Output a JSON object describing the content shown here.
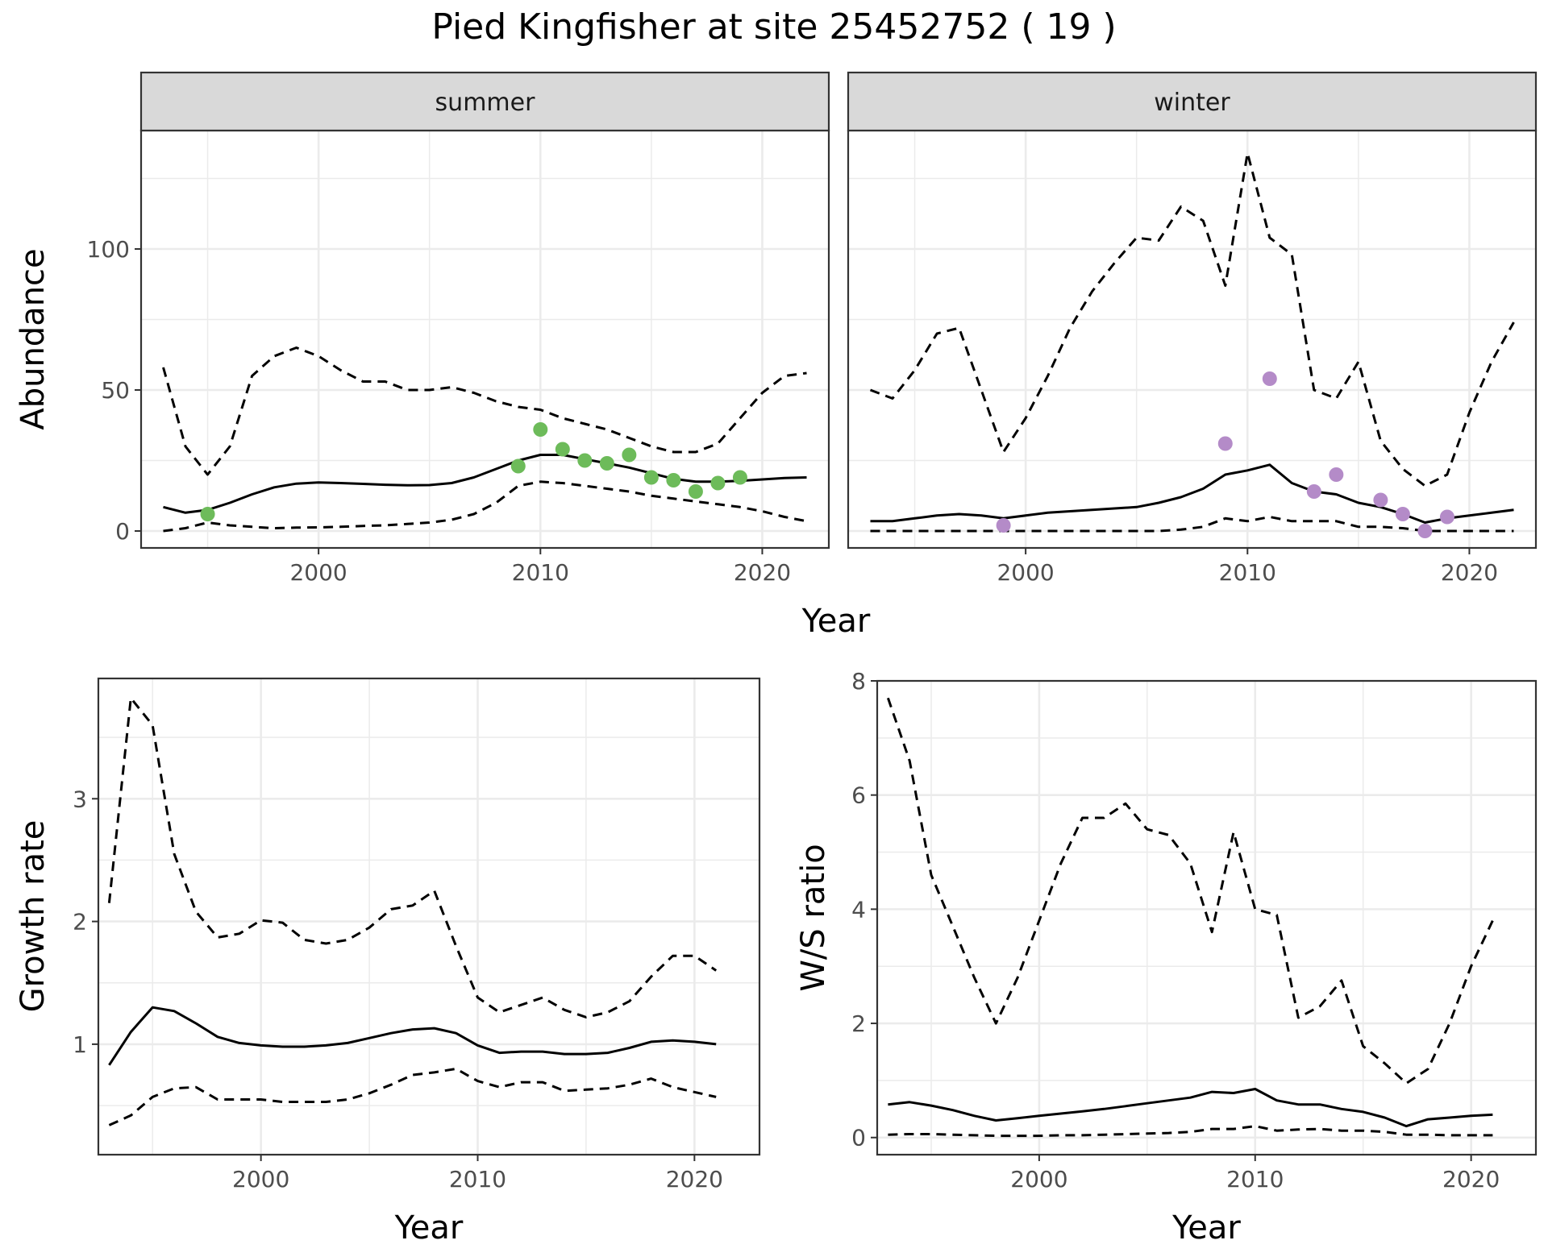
{
  "title": "Pied Kingfisher at site 25452752 ( 19 )",
  "colors": {
    "summer_points": "#6dbb5a",
    "winter_points": "#b48bc8",
    "line": "#000000",
    "strip_bg": "#d9d9d9",
    "grid": "#ebebeb"
  },
  "chart_data": [
    {
      "type": "line",
      "panel": "summer",
      "strip": "summer",
      "ylabel": "Abundance",
      "xlabel": "Year",
      "xlim": [
        1992,
        2023
      ],
      "ylim": [
        -6,
        142
      ],
      "xticks": [
        2000,
        2010,
        2020
      ],
      "yticks": [
        0,
        50,
        100
      ],
      "grid": true,
      "x": [
        1993,
        1994,
        1995,
        1996,
        1997,
        1998,
        1999,
        2000,
        2001,
        2002,
        2003,
        2004,
        2005,
        2006,
        2007,
        2008,
        2009,
        2010,
        2011,
        2012,
        2013,
        2014,
        2015,
        2016,
        2017,
        2018,
        2019,
        2020,
        2021,
        2022
      ],
      "series": [
        {
          "role": "estimate",
          "style": "solid",
          "values": [
            8.5,
            6.5,
            7.5,
            10,
            13,
            15.5,
            16.8,
            17.2,
            17,
            16.7,
            16.4,
            16.2,
            16.3,
            17,
            19,
            22,
            25,
            27,
            27,
            25.5,
            24,
            22.5,
            20.5,
            18.5,
            17.5,
            17.5,
            17.8,
            18.3,
            18.8,
            19
          ]
        },
        {
          "role": "upper",
          "style": "dashed",
          "values": [
            58,
            30,
            20,
            30,
            55,
            62,
            65,
            62,
            57,
            53,
            53,
            50,
            50,
            51,
            49,
            46,
            44,
            43,
            40,
            38,
            36,
            33,
            30,
            28,
            28,
            31,
            40,
            49,
            55,
            56
          ]
        },
        {
          "role": "lower",
          "style": "dashed",
          "values": [
            0,
            1,
            3,
            2,
            1.5,
            1,
            1.2,
            1.3,
            1.5,
            1.8,
            2,
            2.5,
            3,
            4,
            6,
            10,
            16,
            17.5,
            17,
            16,
            15,
            14,
            12.5,
            11.5,
            10.5,
            9.5,
            8.5,
            7,
            5,
            3.5
          ]
        }
      ],
      "points": {
        "x": [
          1995,
          2009,
          2010,
          2011,
          2012,
          2013,
          2014,
          2015,
          2016,
          2017,
          2018,
          2019
        ],
        "y": [
          6,
          23,
          36,
          29,
          25,
          24,
          27,
          19,
          18,
          14,
          17,
          19
        ]
      }
    },
    {
      "type": "line",
      "panel": "winter",
      "strip": "winter",
      "ylabel": "",
      "xlabel": "Year",
      "xlim": [
        1992,
        2023
      ],
      "ylim": [
        -6,
        142
      ],
      "xticks": [
        2000,
        2010,
        2020
      ],
      "yticks": [
        0,
        50,
        100
      ],
      "grid": true,
      "x": [
        1993,
        1994,
        1995,
        1996,
        1997,
        1998,
        1999,
        2000,
        2001,
        2002,
        2003,
        2004,
        2005,
        2006,
        2007,
        2008,
        2009,
        2010,
        2011,
        2012,
        2013,
        2014,
        2015,
        2016,
        2017,
        2018,
        2019,
        2020,
        2021,
        2022
      ],
      "series": [
        {
          "role": "estimate",
          "style": "solid",
          "values": [
            3.5,
            3.5,
            4.5,
            5.5,
            6,
            5.5,
            4.5,
            5.5,
            6.5,
            7,
            7.5,
            8,
            8.5,
            10,
            12,
            15,
            20,
            21.5,
            23.5,
            17,
            14,
            13,
            10,
            8.5,
            6,
            3,
            4.5,
            5.5,
            6.5,
            7.5
          ]
        },
        {
          "role": "upper",
          "style": "dashed",
          "values": [
            50,
            47,
            57,
            70,
            72,
            50,
            28,
            40,
            55,
            72,
            85,
            95,
            104,
            103,
            115,
            110,
            87,
            134,
            104,
            98,
            50,
            47,
            60,
            32,
            22,
            16,
            20,
            42,
            60,
            74
          ]
        },
        {
          "role": "lower",
          "style": "dashed",
          "values": [
            0,
            0,
            0,
            0,
            0,
            0,
            0,
            0,
            0,
            0,
            0,
            0,
            0,
            0,
            0.5,
            1.5,
            4.5,
            3.5,
            5,
            3.5,
            3.5,
            3.5,
            1.5,
            1.5,
            1,
            0,
            0,
            0,
            0,
            0
          ]
        }
      ],
      "points": {
        "x": [
          1999,
          2009,
          2011,
          2013,
          2014,
          2016,
          2017,
          2018,
          2019
        ],
        "y": [
          2,
          31,
          54,
          14,
          20,
          11,
          6,
          0,
          5
        ]
      }
    },
    {
      "type": "line",
      "panel": "growth",
      "ylabel": "Growth rate",
      "xlabel": "Year",
      "xlim": [
        1992.5,
        2023
      ],
      "ylim": [
        0.1,
        3.98
      ],
      "xticks": [
        2000,
        2010,
        2020
      ],
      "yticks": [
        1,
        2,
        3
      ],
      "grid": true,
      "x": [
        1993,
        1994,
        1995,
        1996,
        1997,
        1998,
        1999,
        2000,
        2001,
        2002,
        2003,
        2004,
        2005,
        2006,
        2007,
        2008,
        2009,
        2010,
        2011,
        2012,
        2013,
        2014,
        2015,
        2016,
        2017,
        2018,
        2019,
        2020,
        2021
      ],
      "series": [
        {
          "role": "estimate",
          "style": "solid",
          "values": [
            0.83,
            1.1,
            1.3,
            1.27,
            1.17,
            1.06,
            1.01,
            0.99,
            0.98,
            0.98,
            0.99,
            1.01,
            1.05,
            1.09,
            1.12,
            1.13,
            1.09,
            0.99,
            0.93,
            0.94,
            0.94,
            0.92,
            0.92,
            0.93,
            0.97,
            1.02,
            1.03,
            1.02,
            1.0
          ]
        },
        {
          "role": "upper",
          "style": "dashed",
          "values": [
            2.15,
            3.82,
            3.6,
            2.55,
            2.08,
            1.87,
            1.9,
            2.01,
            1.99,
            1.85,
            1.82,
            1.85,
            1.95,
            2.1,
            2.13,
            2.25,
            1.8,
            1.38,
            1.26,
            1.32,
            1.38,
            1.28,
            1.22,
            1.26,
            1.35,
            1.55,
            1.72,
            1.72,
            1.6
          ]
        },
        {
          "role": "lower",
          "style": "dashed",
          "values": [
            0.34,
            0.42,
            0.57,
            0.64,
            0.65,
            0.55,
            0.55,
            0.55,
            0.53,
            0.53,
            0.53,
            0.55,
            0.6,
            0.67,
            0.75,
            0.77,
            0.8,
            0.7,
            0.65,
            0.69,
            0.69,
            0.62,
            0.63,
            0.64,
            0.67,
            0.72,
            0.65,
            0.61,
            0.57
          ]
        }
      ]
    },
    {
      "type": "line",
      "panel": "ratio",
      "ylabel": "W/S ratio",
      "xlabel": "Year",
      "xlim": [
        1992.5,
        2023
      ],
      "ylim": [
        -0.3,
        8.0
      ],
      "xticks": [
        2000,
        2010,
        2020
      ],
      "yticks": [
        0,
        2,
        4,
        6,
        8
      ],
      "grid": true,
      "x": [
        1993,
        1994,
        1995,
        1996,
        1997,
        1998,
        1999,
        2000,
        2001,
        2002,
        2003,
        2004,
        2005,
        2006,
        2007,
        2008,
        2009,
        2010,
        2011,
        2012,
        2013,
        2014,
        2015,
        2016,
        2017,
        2018,
        2019,
        2020,
        2021
      ],
      "series": [
        {
          "role": "estimate",
          "style": "solid",
          "values": [
            0.58,
            0.62,
            0.56,
            0.48,
            0.38,
            0.3,
            0.34,
            0.38,
            0.42,
            0.46,
            0.5,
            0.55,
            0.6,
            0.65,
            0.7,
            0.8,
            0.78,
            0.85,
            0.65,
            0.58,
            0.58,
            0.5,
            0.45,
            0.35,
            0.2,
            0.32,
            0.35,
            0.38,
            0.4
          ]
        },
        {
          "role": "upper",
          "style": "dashed",
          "values": [
            7.7,
            6.6,
            4.6,
            3.7,
            2.8,
            2.0,
            2.8,
            3.8,
            4.8,
            5.6,
            5.6,
            5.85,
            5.4,
            5.3,
            4.8,
            3.6,
            5.35,
            4.0,
            3.9,
            2.1,
            2.3,
            2.75,
            1.6,
            1.3,
            0.95,
            1.2,
            2.0,
            3.0,
            3.8
          ]
        },
        {
          "role": "lower",
          "style": "dashed",
          "values": [
            0.05,
            0.06,
            0.06,
            0.05,
            0.04,
            0.03,
            0.03,
            0.03,
            0.04,
            0.04,
            0.05,
            0.06,
            0.07,
            0.08,
            0.1,
            0.15,
            0.15,
            0.2,
            0.12,
            0.14,
            0.15,
            0.12,
            0.12,
            0.1,
            0.05,
            0.05,
            0.04,
            0.04,
            0.04
          ]
        }
      ]
    }
  ]
}
